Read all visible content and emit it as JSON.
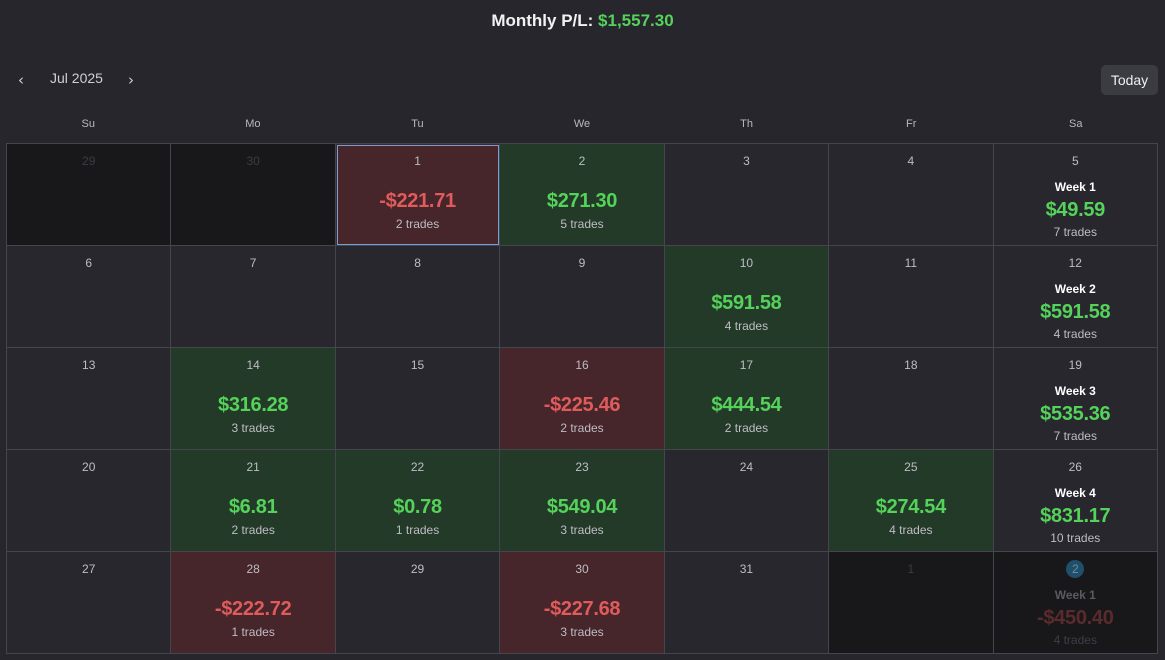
{
  "header": {
    "label": "Monthly P/L:",
    "value": "$1,557.30"
  },
  "nav": {
    "prev_icon": "‹",
    "next_icon": "›",
    "month": "Jul 2025",
    "today": "Today"
  },
  "weekdays": [
    "Su",
    "Mo",
    "Tu",
    "We",
    "Th",
    "Fr",
    "Sa"
  ],
  "weeks": [
    [
      {
        "day": "29",
        "outside": true
      },
      {
        "day": "30",
        "outside": true
      },
      {
        "day": "1",
        "amount": "-$221.71",
        "trades": "2 trades",
        "tone": "neg",
        "selected": true
      },
      {
        "day": "2",
        "amount": "$271.30",
        "trades": "5 trades",
        "tone": "pos"
      },
      {
        "day": "3"
      },
      {
        "day": "4"
      },
      {
        "day": "5",
        "week": "Week 1",
        "amount": "$49.59",
        "trades": "7 trades",
        "tone": "pos"
      }
    ],
    [
      {
        "day": "6"
      },
      {
        "day": "7"
      },
      {
        "day": "8"
      },
      {
        "day": "9"
      },
      {
        "day": "10",
        "amount": "$591.58",
        "trades": "4 trades",
        "tone": "pos"
      },
      {
        "day": "11"
      },
      {
        "day": "12",
        "week": "Week 2",
        "amount": "$591.58",
        "trades": "4 trades",
        "tone": "pos"
      }
    ],
    [
      {
        "day": "13"
      },
      {
        "day": "14",
        "amount": "$316.28",
        "trades": "3 trades",
        "tone": "pos"
      },
      {
        "day": "15"
      },
      {
        "day": "16",
        "amount": "-$225.46",
        "trades": "2 trades",
        "tone": "neg"
      },
      {
        "day": "17",
        "amount": "$444.54",
        "trades": "2 trades",
        "tone": "pos"
      },
      {
        "day": "18"
      },
      {
        "day": "19",
        "week": "Week 3",
        "amount": "$535.36",
        "trades": "7 trades",
        "tone": "pos"
      }
    ],
    [
      {
        "day": "20"
      },
      {
        "day": "21",
        "amount": "$6.81",
        "trades": "2 trades",
        "tone": "pos"
      },
      {
        "day": "22",
        "amount": "$0.78",
        "trades": "1 trades",
        "tone": "pos"
      },
      {
        "day": "23",
        "amount": "$549.04",
        "trades": "3 trades",
        "tone": "pos"
      },
      {
        "day": "24"
      },
      {
        "day": "25",
        "amount": "$274.54",
        "trades": "4 trades",
        "tone": "pos"
      },
      {
        "day": "26",
        "week": "Week 4",
        "amount": "$831.17",
        "trades": "10 trades",
        "tone": "pos"
      }
    ],
    [
      {
        "day": "27"
      },
      {
        "day": "28",
        "amount": "-$222.72",
        "trades": "1 trades",
        "tone": "neg"
      },
      {
        "day": "29"
      },
      {
        "day": "30",
        "amount": "-$227.68",
        "trades": "3 trades",
        "tone": "neg"
      },
      {
        "day": "31"
      },
      {
        "day": "1",
        "outside": true
      },
      {
        "day": "2",
        "outside": true,
        "badge": true,
        "week": "Week 1",
        "amount": "-$450.40",
        "trades": "4 trades",
        "tone": "neg"
      }
    ]
  ],
  "colors": {
    "positive": "#54d25a",
    "negative": "#e05b5b",
    "positive_bg": "#243a29",
    "negative_bg": "#46252b",
    "background": "#27262d"
  }
}
